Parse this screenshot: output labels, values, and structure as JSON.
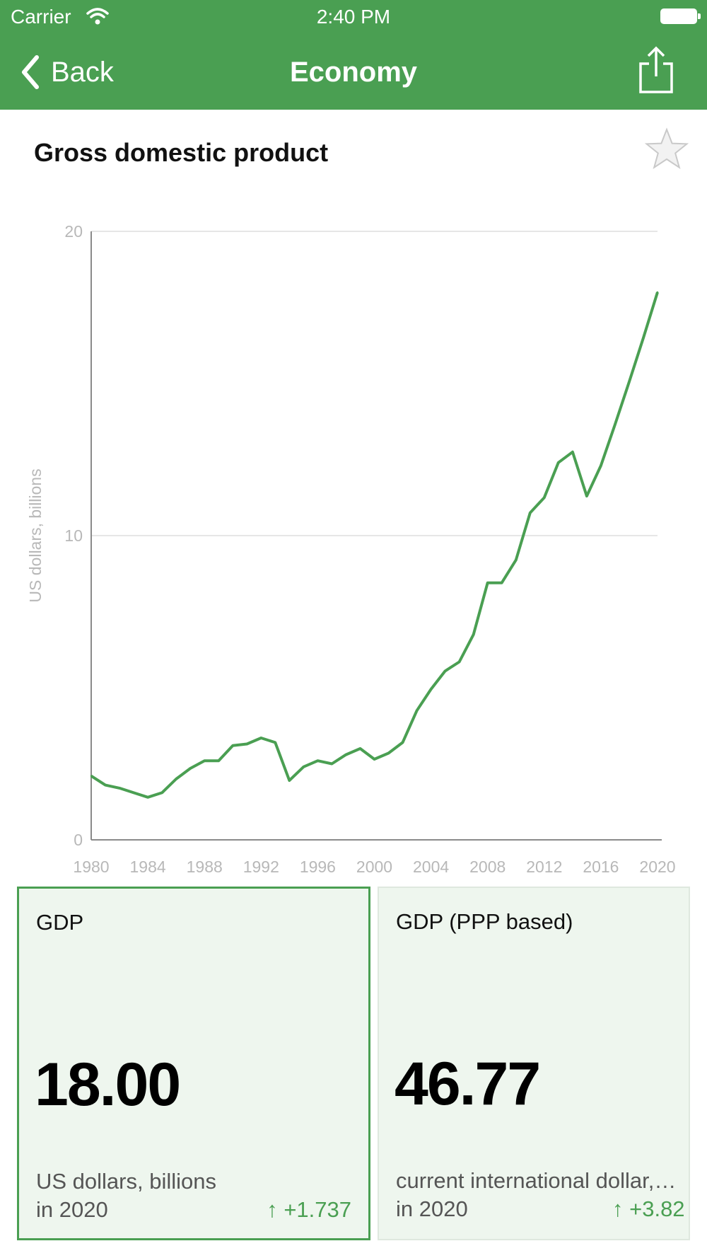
{
  "status_bar": {
    "carrier": "Carrier",
    "time": "2:40 PM"
  },
  "nav": {
    "back_label": "Back",
    "title": "Economy"
  },
  "icons": {
    "back": "chevron-left-icon",
    "share": "share-icon",
    "favorite": "star-icon",
    "wifi": "wifi-icon",
    "battery": "battery-icon"
  },
  "card": {
    "title": "Gross domestic product"
  },
  "chart_data": {
    "type": "line",
    "title": "Gross domestic product",
    "ylabel": "US dollars, billions",
    "xlabel": "",
    "ylim": [
      0,
      20
    ],
    "xlim": [
      1980,
      2020
    ],
    "yticks": [
      0,
      10,
      20
    ],
    "xticks": [
      1980,
      1984,
      1988,
      1992,
      1996,
      2000,
      2004,
      2008,
      2012,
      2016,
      2020
    ],
    "grid": true,
    "series": [
      {
        "color": "#4a9f52",
        "x": [
          1980,
          1981,
          1982,
          1983,
          1984,
          1985,
          1986,
          1987,
          1988,
          1989,
          1990,
          1991,
          1992,
          1993,
          1994,
          1995,
          1996,
          1997,
          1998,
          1999,
          2000,
          2001,
          2002,
          2003,
          2004,
          2005,
          2006,
          2007,
          2008,
          2009,
          2010,
          2011,
          2012,
          2013,
          2014,
          2015,
          2016,
          2017,
          2018,
          2019,
          2020
        ],
        "values": [
          2.1,
          1.8,
          1.7,
          1.55,
          1.4,
          1.55,
          2.0,
          2.35,
          2.6,
          2.6,
          3.1,
          3.15,
          3.35,
          3.2,
          1.95,
          2.4,
          2.6,
          2.5,
          2.8,
          3.0,
          2.65,
          2.85,
          3.2,
          4.25,
          4.95,
          5.55,
          5.85,
          6.75,
          8.45,
          8.45,
          9.2,
          10.75,
          11.25,
          12.4,
          12.75,
          11.3,
          12.3,
          13.65,
          15.05,
          16.5,
          18.0
        ]
      }
    ]
  },
  "tiles": [
    {
      "title": "GDP",
      "value": "18.00",
      "unit": "US dollars, billions",
      "year": "in 2020",
      "change": "↑ +1.737"
    },
    {
      "title": "GDP (PPP based)",
      "value": "46.77",
      "unit": "current international dollar,…",
      "year": "in 2020",
      "change": "↑ +3.82"
    }
  ],
  "colors": {
    "accent": "#4a9f52",
    "tile_bg": "#eef6ee",
    "axis_label": "#b8b8b8"
  }
}
